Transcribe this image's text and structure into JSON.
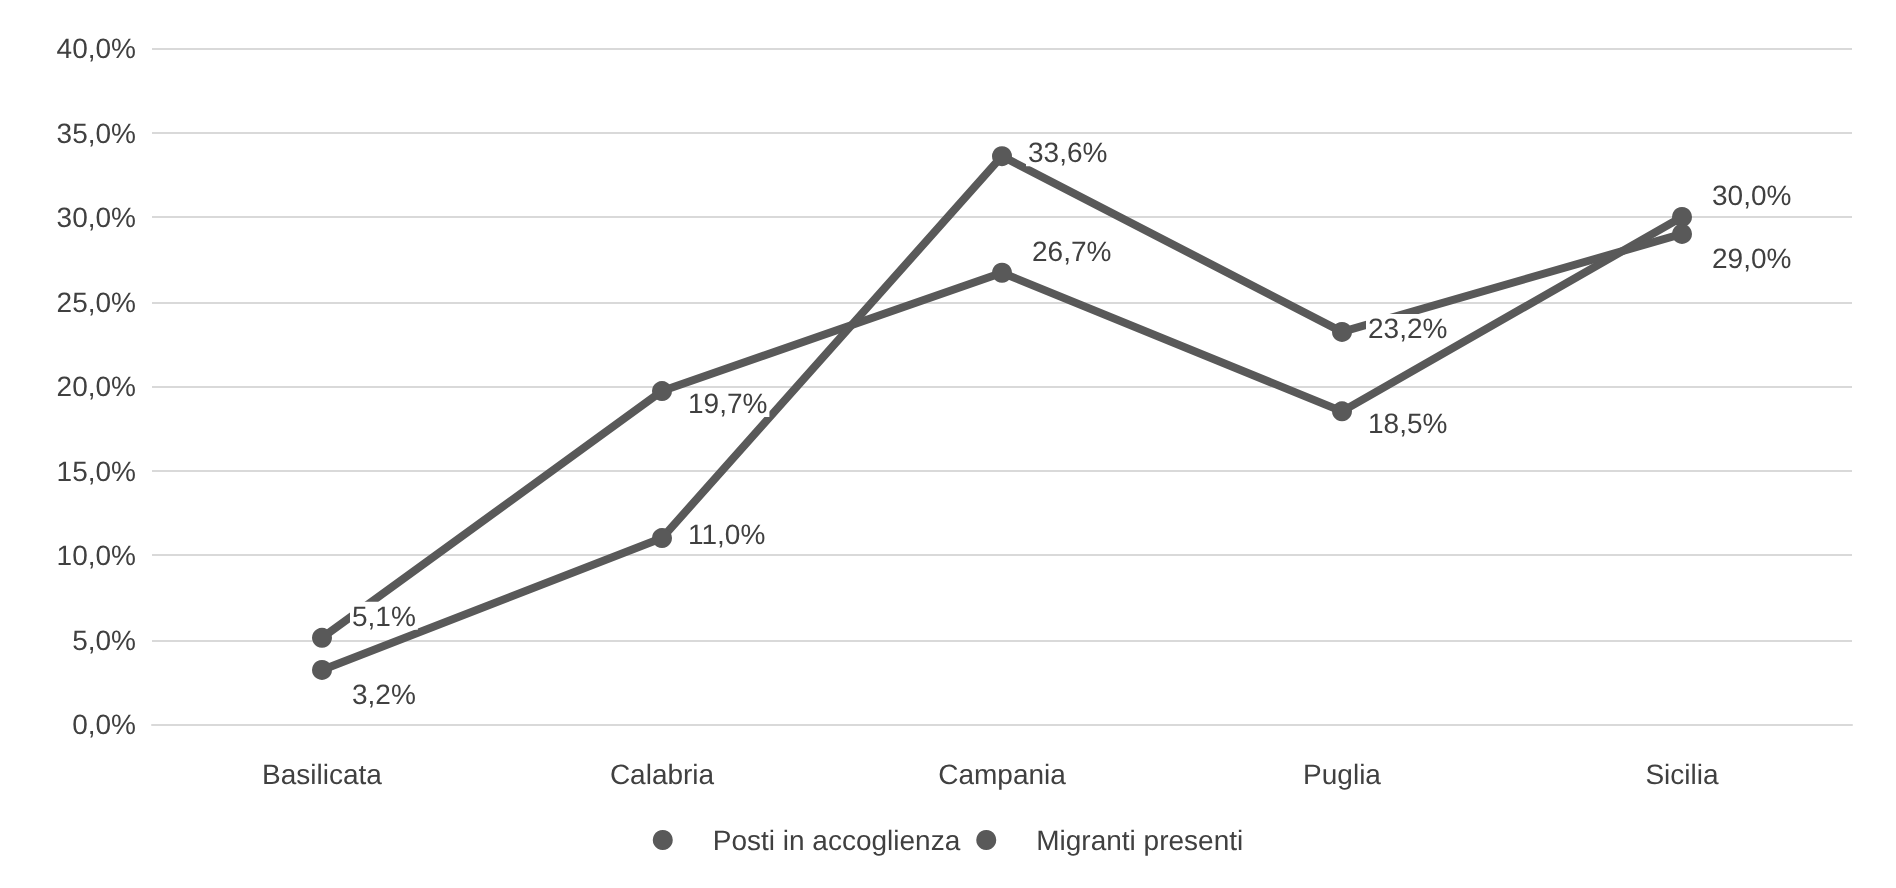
{
  "chart_data": {
    "type": "line",
    "categories": [
      "Basilicata",
      "Calabria",
      "Campania",
      "Puglia",
      "Sicilia"
    ],
    "series": [
      {
        "name": "Posti in accoglienza",
        "color": "#595959",
        "values": [
          5.1,
          19.7,
          26.7,
          18.5,
          30.0
        ],
        "value_labels": [
          "5,1%",
          "19,7%",
          "26,7%",
          "18,5%",
          "30,0%"
        ]
      },
      {
        "name": "Migranti presenti",
        "color": "#595959",
        "values": [
          3.2,
          11.0,
          33.6,
          23.2,
          29.0
        ],
        "value_labels": [
          "3,2%",
          "11,0%",
          "33,6%",
          "23,2%",
          "29,0%"
        ]
      }
    ],
    "ylim": [
      0,
      40
    ],
    "yticks": [
      {
        "value": 0,
        "label": "0,0%"
      },
      {
        "value": 5,
        "label": "5,0%"
      },
      {
        "value": 10,
        "label": "10,0%"
      },
      {
        "value": 15,
        "label": "15,0%"
      },
      {
        "value": 20,
        "label": "20,0%"
      },
      {
        "value": 25,
        "label": "25,0%"
      },
      {
        "value": 30,
        "label": "30,0%"
      },
      {
        "value": 35,
        "label": "35,0%"
      },
      {
        "value": 40,
        "label": "40,0%"
      }
    ],
    "grid": "y",
    "legend": "bottom",
    "marker": "circle",
    "line_style": "solid"
  }
}
